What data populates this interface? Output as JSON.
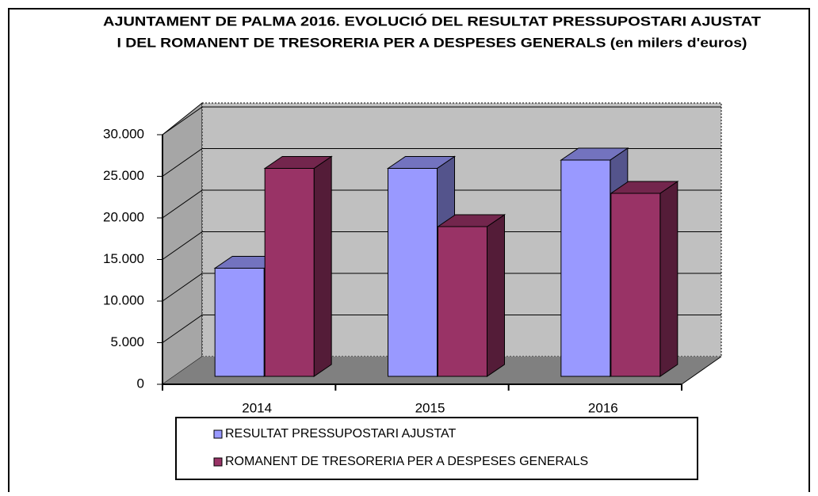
{
  "chart_data": {
    "type": "bar3d",
    "title": [
      "AJUNTAMENT DE PALMA 2016. EVOLUCIÓ DEL RESULTAT PRESSUPOSTARI AJUSTAT",
      "I DEL ROMANENT DE TRESORERIA PER A DESPESES GENERALS (en milers d'euros)"
    ],
    "categories": [
      "2014",
      "2015",
      "2016"
    ],
    "series": [
      {
        "name": "RESULTAT PRESSUPOSTARI AJUSTAT",
        "color": "#9999ff",
        "values": [
          13000,
          25000,
          26000
        ]
      },
      {
        "name": "ROMANENT DE TRESORERIA PER A DESPESES GENERALS",
        "color": "#993366",
        "values": [
          25000,
          18000,
          22000
        ]
      }
    ],
    "ylim": [
      0,
      30000
    ],
    "yticks": [
      0,
      {
        "value": 5000,
        "label": "5.000"
      },
      {
        "value": 10000,
        "label": "10.000"
      },
      {
        "value": 15000,
        "label": "15.000"
      },
      {
        "value": 20000,
        "label": "20.000"
      },
      {
        "value": 25000,
        "label": "25.000"
      },
      {
        "value": 30000,
        "label": "30.000"
      }
    ],
    "grid": true
  }
}
